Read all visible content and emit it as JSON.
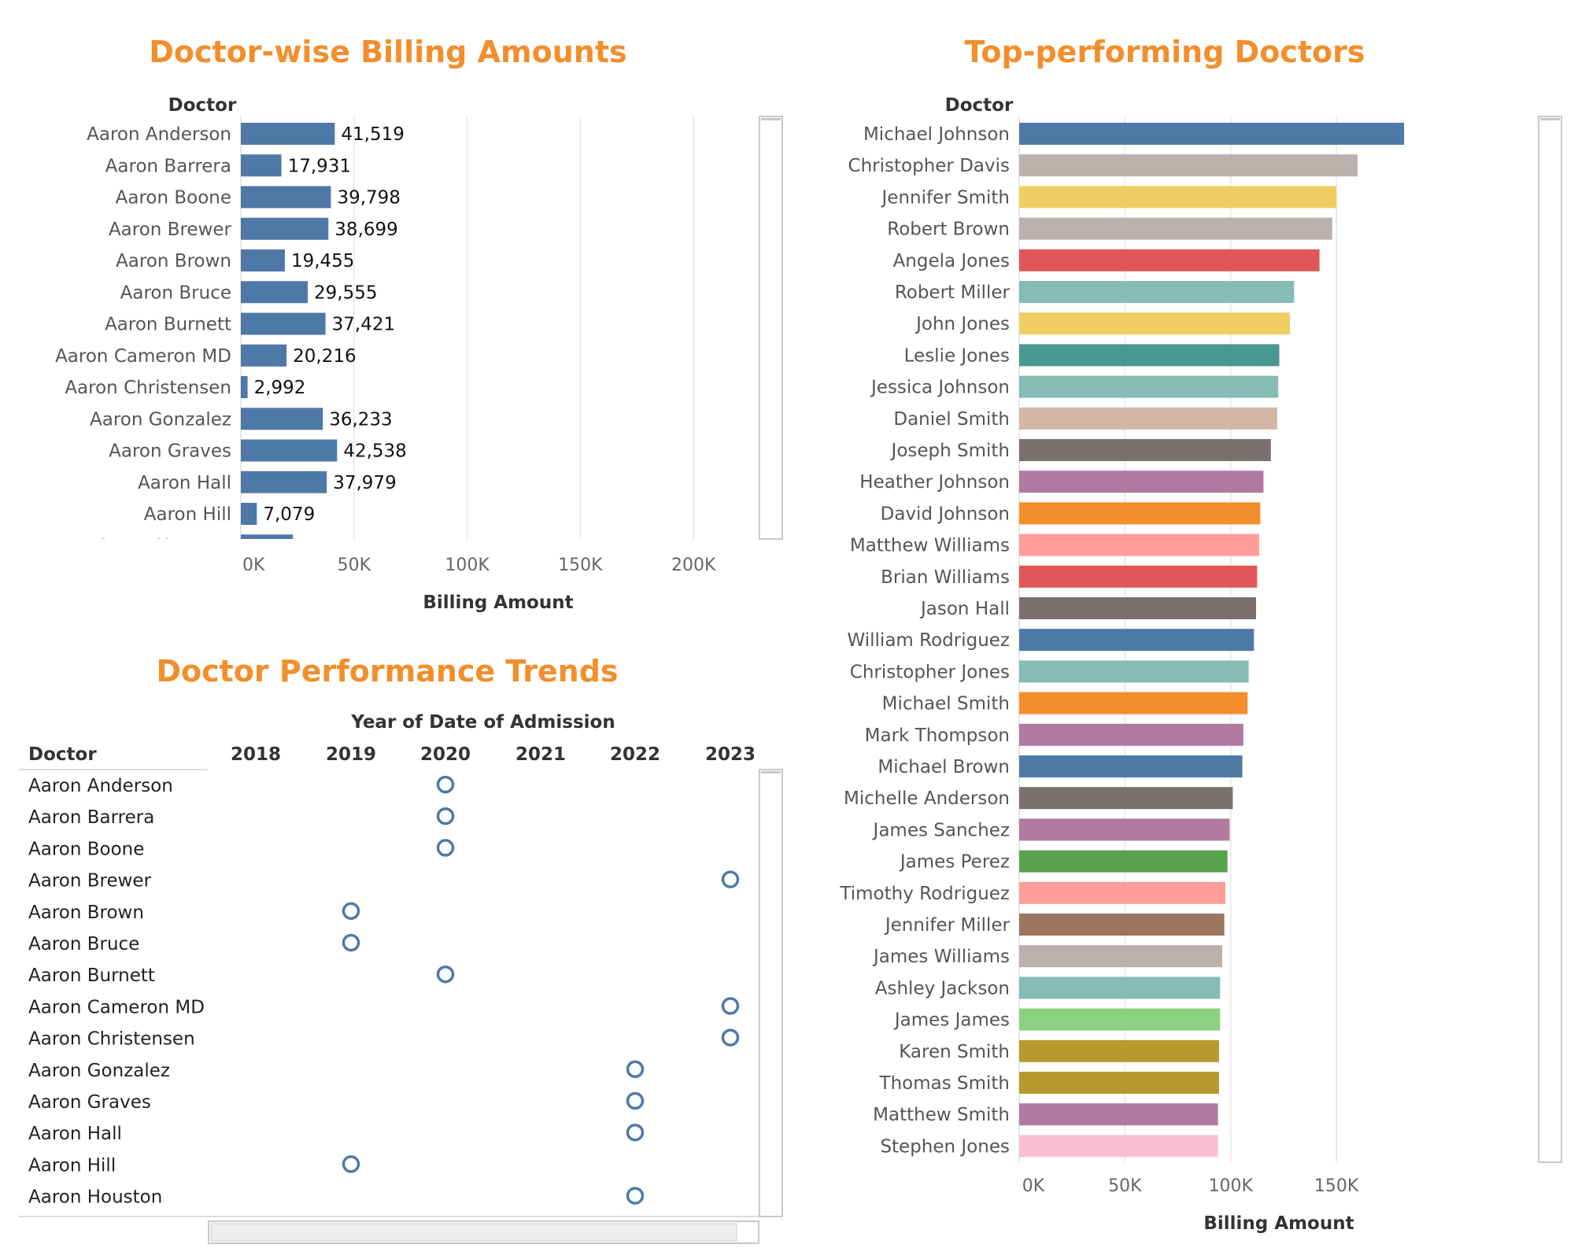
{
  "colors": {
    "title": "#f28e2b",
    "primary_bar": "#4e79a7",
    "grid": "#e6e6e6"
  },
  "chart_data": [
    {
      "id": "billing",
      "type": "bar",
      "orientation": "horizontal",
      "title": "Doctor-wise Billing Amounts",
      "row_header": "Doctor",
      "xlabel": "Billing Amount",
      "xlim": [
        0,
        230000
      ],
      "ticks": [
        {
          "value": 0,
          "label": "0K"
        },
        {
          "value": 50000,
          "label": "50K"
        },
        {
          "value": 100000,
          "label": "100K"
        },
        {
          "value": 150000,
          "label": "150K"
        },
        {
          "value": 200000,
          "label": "200K"
        }
      ],
      "color": "#4e79a7",
      "categories": [
        "Aaron Anderson",
        "Aaron Barrera",
        "Aaron Boone",
        "Aaron Brewer",
        "Aaron Brown",
        "Aaron Bruce",
        "Aaron Burnett",
        "Aaron Cameron MD",
        "Aaron Christensen",
        "Aaron Gonzalez",
        "Aaron Graves",
        "Aaron Hall",
        "Aaron Hill",
        "Aaron Houston"
      ],
      "values": [
        41519,
        17931,
        39798,
        38699,
        19455,
        29555,
        37421,
        20216,
        2992,
        36233,
        42538,
        37979,
        7079,
        23000
      ],
      "value_labels": [
        "41,519",
        "17,931",
        "39,798",
        "38,699",
        "19,455",
        "29,555",
        "37,421",
        "20,216",
        "2,992",
        "36,233",
        "42,538",
        "37,979",
        "7,079",
        ""
      ],
      "grid": true
    },
    {
      "id": "trends",
      "type": "scatter",
      "title": "Doctor Performance Trends",
      "row_header": "Doctor",
      "column_header": "Year of Date of Admission",
      "x_categories": [
        "2018",
        "2019",
        "2020",
        "2021",
        "2022",
        "2023"
      ],
      "color": "#4e79a7",
      "rows": [
        {
          "doctor": "Aaron Anderson",
          "year": "2020"
        },
        {
          "doctor": "Aaron Barrera",
          "year": "2020"
        },
        {
          "doctor": "Aaron Boone",
          "year": "2020"
        },
        {
          "doctor": "Aaron Brewer",
          "year": "2023"
        },
        {
          "doctor": "Aaron Brown",
          "year": "2019"
        },
        {
          "doctor": "Aaron Bruce",
          "year": "2019"
        },
        {
          "doctor": "Aaron Burnett",
          "year": "2020"
        },
        {
          "doctor": "Aaron Cameron MD",
          "year": "2023"
        },
        {
          "doctor": "Aaron Christensen",
          "year": "2023"
        },
        {
          "doctor": "Aaron Gonzalez",
          "year": "2022"
        },
        {
          "doctor": "Aaron Graves",
          "year": "2022"
        },
        {
          "doctor": "Aaron Hall",
          "year": "2022"
        },
        {
          "doctor": "Aaron Hill",
          "year": "2019"
        },
        {
          "doctor": "Aaron Houston",
          "year": "2022"
        }
      ]
    },
    {
      "id": "top",
      "type": "bar",
      "orientation": "horizontal",
      "title": "Top-performing Doctors",
      "row_header": "Doctor",
      "xlabel": "Billing Amount",
      "xlim": [
        0,
        190000
      ],
      "ticks": [
        {
          "value": 0,
          "label": "0K"
        },
        {
          "value": 50000,
          "label": "50K"
        },
        {
          "value": 100000,
          "label": "100K"
        },
        {
          "value": 150000,
          "label": "150K"
        }
      ],
      "grid": true,
      "categories": [
        "Michael Johnson",
        "Christopher Davis",
        "Jennifer Smith",
        "Robert Brown",
        "Angela Jones",
        "Robert Miller",
        "John Jones",
        "Leslie Jones",
        "Jessica Johnson",
        "Daniel Smith",
        "Joseph Smith",
        "Heather Johnson",
        "David Johnson",
        "Matthew Williams",
        "Brian Williams",
        "Jason Hall",
        "William Rodriguez",
        "Christopher Jones",
        "Michael Smith",
        "Mark Thompson",
        "Michael Brown",
        "Michelle Anderson",
        "James Sanchez",
        "James Perez",
        "Timothy Rodriguez",
        "Jennifer Miller",
        "James Williams",
        "Ashley Jackson",
        "James James",
        "Karen Smith",
        "Thomas Smith",
        "Matthew Smith",
        "Stephen Jones"
      ],
      "values": [
        182000,
        160000,
        150000,
        148000,
        142000,
        130000,
        128000,
        123000,
        122500,
        122000,
        119000,
        115500,
        114000,
        113500,
        112500,
        112000,
        111000,
        108500,
        108000,
        106000,
        105500,
        101000,
        99500,
        98500,
        97500,
        97000,
        96000,
        95000,
        95000,
        94500,
        94500,
        94000,
        94000
      ],
      "colors": [
        "#4e79a7",
        "#bab0ac",
        "#f1ce63",
        "#bab0ac",
        "#e15759",
        "#86bcb6",
        "#f1ce63",
        "#499894",
        "#86bcb6",
        "#d4b5a7",
        "#79706e",
        "#b07aa1",
        "#f28e2b",
        "#ff9d9a",
        "#e15759",
        "#79706e",
        "#4e79a7",
        "#86bcb6",
        "#f28e2b",
        "#b07aa1",
        "#4e79a7",
        "#79706e",
        "#b07aa1",
        "#59a14f",
        "#ff9d9a",
        "#9c755f",
        "#bab0ac",
        "#86bcb6",
        "#8cd17d",
        "#b6992d",
        "#b6992d",
        "#b07aa1",
        "#fabfd2"
      ]
    }
  ]
}
